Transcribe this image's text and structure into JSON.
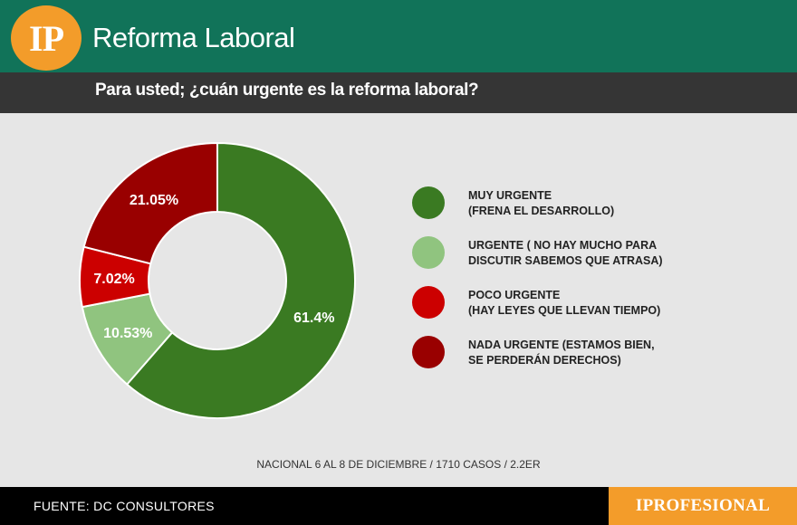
{
  "header": {
    "logo_text": "IP",
    "title": "Reforma Laboral",
    "question": "Para usted; ¿cuán urgente es la reforma laboral?"
  },
  "chart_data": {
    "type": "pie",
    "donut": true,
    "title": "Para usted; ¿cuán urgente es la reforma laboral?",
    "series": [
      {
        "name": "MUY URGENTE (FRENA EL DESARROLLO)",
        "value": 61.4,
        "label": "61.4%",
        "color": "#3a7a22"
      },
      {
        "name": "URGENTE ( NO HAY MUCHO PARA DISCUTIR SABEMOS QUE ATRASA)",
        "value": 10.53,
        "label": "10.53%",
        "color": "#90c47f"
      },
      {
        "name": "POCO URGENTE (HAY LEYES QUE LLEVAN TIEMPO)",
        "value": 7.02,
        "label": "7.02%",
        "color": "#cc0000"
      },
      {
        "name": "NADA URGENTE (ESTAMOS BIEN, SE PERDERÁN DERECHOS)",
        "value": 21.05,
        "label": "21.05%",
        "color": "#990000"
      }
    ]
  },
  "legend": [
    {
      "line1": "MUY URGENTE",
      "line2": "(FRENA EL DESARROLLO)",
      "color": "#3a7a22"
    },
    {
      "line1": "URGENTE ( NO HAY MUCHO PARA",
      "line2": "DISCUTIR SABEMOS QUE ATRASA)",
      "color": "#90c47f"
    },
    {
      "line1": "POCO URGENTE",
      "line2": "(HAY LEYES QUE LLEVAN TIEMPO)",
      "color": "#cc0000"
    },
    {
      "line1": "NADA URGENTE (ESTAMOS BIEN,",
      "line2": "SE PERDERÁN DERECHOS)",
      "color": "#990000"
    }
  ],
  "footnote": "NACIONAL 6 AL 8 DE DICIEMBRE / 1710 CASOS / 2.2ER",
  "footer": {
    "source": "FUENTE: DC CONSULTORES",
    "brand": "IPROFESIONAL"
  }
}
